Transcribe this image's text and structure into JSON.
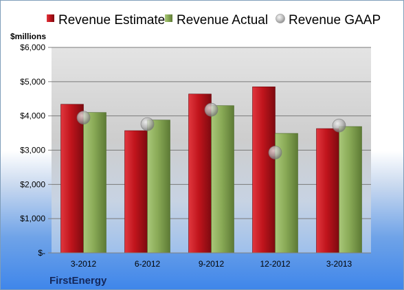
{
  "chart_data": {
    "type": "bar",
    "company": "FirstEnergy",
    "ylabel": "$millions",
    "categories": [
      "3-2012",
      "6-2012",
      "9-2012",
      "12-2012",
      "3-2013"
    ],
    "ylim": [
      0,
      6000
    ],
    "yticks": [
      {
        "value": 0,
        "label": "$-"
      },
      {
        "value": 1000,
        "label": "$1,000"
      },
      {
        "value": 2000,
        "label": "$2,000"
      },
      {
        "value": 3000,
        "label": "$3,000"
      },
      {
        "value": 4000,
        "label": "$4,000"
      },
      {
        "value": 5000,
        "label": "$5,000"
      },
      {
        "value": 6000,
        "label": "$6,000"
      }
    ],
    "grid": true,
    "legend_position": "top",
    "series": [
      {
        "name": "Revenue Estimate",
        "kind": "bar",
        "color": "#c0141c",
        "values": [
          4340,
          3570,
          4640,
          4850,
          3630
        ]
      },
      {
        "name": "Revenue Actual",
        "kind": "bar",
        "color": "#8aab57",
        "values": [
          4100,
          3880,
          4300,
          3490,
          3690
        ]
      },
      {
        "name": "Revenue GAAP",
        "kind": "marker",
        "color": "#b0b0b0",
        "values": [
          3950,
          3760,
          4180,
          2930,
          3720
        ]
      }
    ]
  }
}
